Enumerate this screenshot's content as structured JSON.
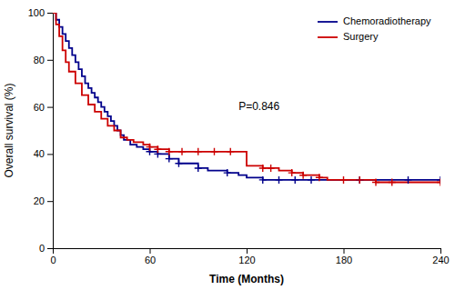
{
  "chart_data": {
    "type": "line",
    "xlabel": "Time (Months)",
    "ylabel": "Overall survival (%)",
    "xlim": [
      0,
      240
    ],
    "ylim": [
      0,
      100
    ],
    "xticks": [
      0,
      60,
      120,
      180,
      240
    ],
    "yticks": [
      0,
      20,
      40,
      60,
      80,
      100
    ],
    "grid": false,
    "legend": "upper right",
    "annotations": [
      {
        "text": "P=0.846",
        "x": 115,
        "y": 62
      }
    ],
    "series": [
      {
        "name": "Chemoradiotherapy",
        "type": "line",
        "line_style": "step",
        "color": "#00008B",
        "x": [
          0,
          2,
          4,
          6,
          8,
          10,
          12,
          14,
          16,
          18,
          20,
          22,
          24,
          26,
          28,
          30,
          32,
          34,
          36,
          38,
          40,
          42,
          44,
          48,
          52,
          56,
          60,
          65,
          72,
          78,
          90,
          96,
          108,
          115,
          120,
          130,
          140,
          150,
          160,
          190,
          240
        ],
        "values": [
          100,
          97,
          94,
          91,
          88,
          85,
          82,
          79,
          76,
          73,
          70,
          68,
          66,
          64,
          62,
          60,
          58,
          56,
          54,
          52,
          50,
          48,
          46,
          44,
          43,
          42,
          41,
          40,
          38,
          36,
          34,
          33,
          32,
          31,
          30,
          29,
          29,
          29,
          29,
          29,
          29
        ]
      },
      {
        "name": "Surgery",
        "type": "line",
        "line_style": "step",
        "color": "#CC0000",
        "x": [
          0,
          2,
          4,
          6,
          8,
          10,
          14,
          18,
          22,
          26,
          30,
          34,
          38,
          42,
          46,
          50,
          56,
          60,
          65,
          72,
          80,
          90,
          100,
          110,
          118,
          120,
          130,
          135,
          140,
          148,
          155,
          160,
          165,
          170,
          180,
          190,
          200,
          210,
          240
        ],
        "values": [
          100,
          95,
          90,
          84,
          79,
          75,
          70,
          65,
          61,
          58,
          55,
          52,
          50,
          47,
          46,
          45,
          44,
          43,
          42,
          41,
          41,
          41,
          41,
          41,
          41,
          35,
          34,
          34,
          33,
          32,
          31,
          31,
          30,
          29,
          29,
          29,
          28,
          28,
          28
        ]
      },
      {
        "type": "scatter",
        "marker": "plus",
        "color": "#00008B",
        "x": [
          60,
          65,
          72,
          78,
          90,
          108,
          130,
          140,
          150,
          160,
          190,
          220,
          240
        ],
        "values": [
          41,
          40,
          38,
          36,
          34,
          32,
          29,
          29,
          29,
          29,
          29,
          29,
          29
        ]
      },
      {
        "type": "scatter",
        "marker": "plus",
        "color": "#CC0000",
        "x": [
          60,
          65,
          72,
          80,
          90,
          100,
          110,
          130,
          135,
          148,
          155,
          165,
          180,
          190,
          200,
          210,
          240
        ],
        "values": [
          43,
          42,
          41,
          41,
          41,
          41,
          41,
          34,
          34,
          32,
          31,
          30,
          29,
          29,
          28,
          28,
          28
        ]
      }
    ]
  }
}
